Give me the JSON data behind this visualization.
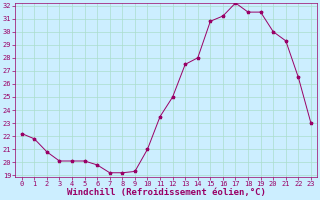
{
  "x": [
    0,
    1,
    2,
    3,
    4,
    5,
    6,
    7,
    8,
    9,
    10,
    11,
    12,
    13,
    14,
    15,
    16,
    17,
    18,
    19,
    20,
    21,
    22,
    23
  ],
  "y": [
    22.2,
    21.8,
    20.8,
    20.1,
    20.1,
    20.1,
    19.8,
    19.2,
    19.2,
    19.3,
    21.0,
    23.5,
    25.0,
    27.5,
    28.0,
    30.8,
    31.2,
    32.2,
    31.5,
    31.5,
    30.0,
    29.3,
    26.5,
    23.0
  ],
  "ylim": [
    19,
    32
  ],
  "xlim": [
    -0.5,
    23.5
  ],
  "yticks": [
    19,
    20,
    21,
    22,
    23,
    24,
    25,
    26,
    27,
    28,
    29,
    30,
    31,
    32
  ],
  "xticks": [
    0,
    1,
    2,
    3,
    4,
    5,
    6,
    7,
    8,
    9,
    10,
    11,
    12,
    13,
    14,
    15,
    16,
    17,
    18,
    19,
    20,
    21,
    22,
    23
  ],
  "xlabel": "Windchill (Refroidissement éolien,°C)",
  "line_color": "#990066",
  "marker": "*",
  "marker_size": 2.5,
  "bg_color": "#cceeff",
  "grid_color": "#aaddcc",
  "tick_color": "#990066",
  "label_color": "#990066",
  "tick_fontsize": 5,
  "xlabel_fontsize": 6.5,
  "linewidth": 0.7
}
